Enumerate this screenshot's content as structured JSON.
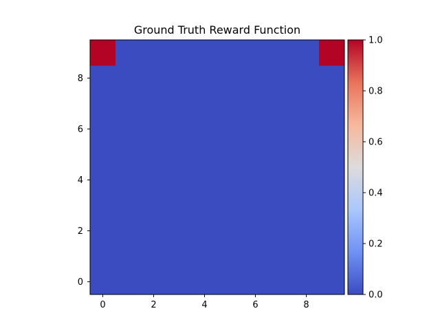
{
  "chart_data": {
    "type": "heatmap",
    "title": "Ground Truth Reward Function",
    "xlabel": "",
    "ylabel": "",
    "rows": 10,
    "cols": 10,
    "origin": "lower",
    "xlim": [
      -0.5,
      9.5
    ],
    "ylim": [
      -0.5,
      9.5
    ],
    "x_ticks": [
      0,
      2,
      4,
      6,
      8
    ],
    "y_ticks": [
      0,
      2,
      4,
      6,
      8
    ],
    "values": [
      [
        0,
        0,
        0,
        0,
        0,
        0,
        0,
        0,
        0,
        0
      ],
      [
        0,
        0,
        0,
        0,
        0,
        0,
        0,
        0,
        0,
        0
      ],
      [
        0,
        0,
        0,
        0,
        0,
        0,
        0,
        0,
        0,
        0
      ],
      [
        0,
        0,
        0,
        0,
        0,
        0,
        0,
        0,
        0,
        0
      ],
      [
        0,
        0,
        0,
        0,
        0,
        0,
        0,
        0,
        0,
        0
      ],
      [
        0,
        0,
        0,
        0,
        0,
        0,
        0,
        0,
        0,
        0
      ],
      [
        0,
        0,
        0,
        0,
        0,
        0,
        0,
        0,
        0,
        0
      ],
      [
        0,
        0,
        0,
        0,
        0,
        0,
        0,
        0,
        0,
        0
      ],
      [
        0,
        0,
        0,
        0,
        0,
        0,
        0,
        0,
        0,
        0
      ],
      [
        1,
        0,
        0,
        0,
        0,
        0,
        0,
        0,
        0,
        1
      ]
    ],
    "colormap": "coolwarm",
    "colormap_stops": [
      "#3b4cc0",
      "#6f92f3",
      "#aac7fd",
      "#dddcdc",
      "#f7b89c",
      "#e7745b",
      "#b40426"
    ],
    "colorbar": {
      "range": [
        0.0,
        1.0
      ],
      "ticks": [
        "0.0",
        "0.2",
        "0.4",
        "0.6",
        "0.8",
        "1.0"
      ],
      "placement": "right"
    },
    "grid": false
  }
}
